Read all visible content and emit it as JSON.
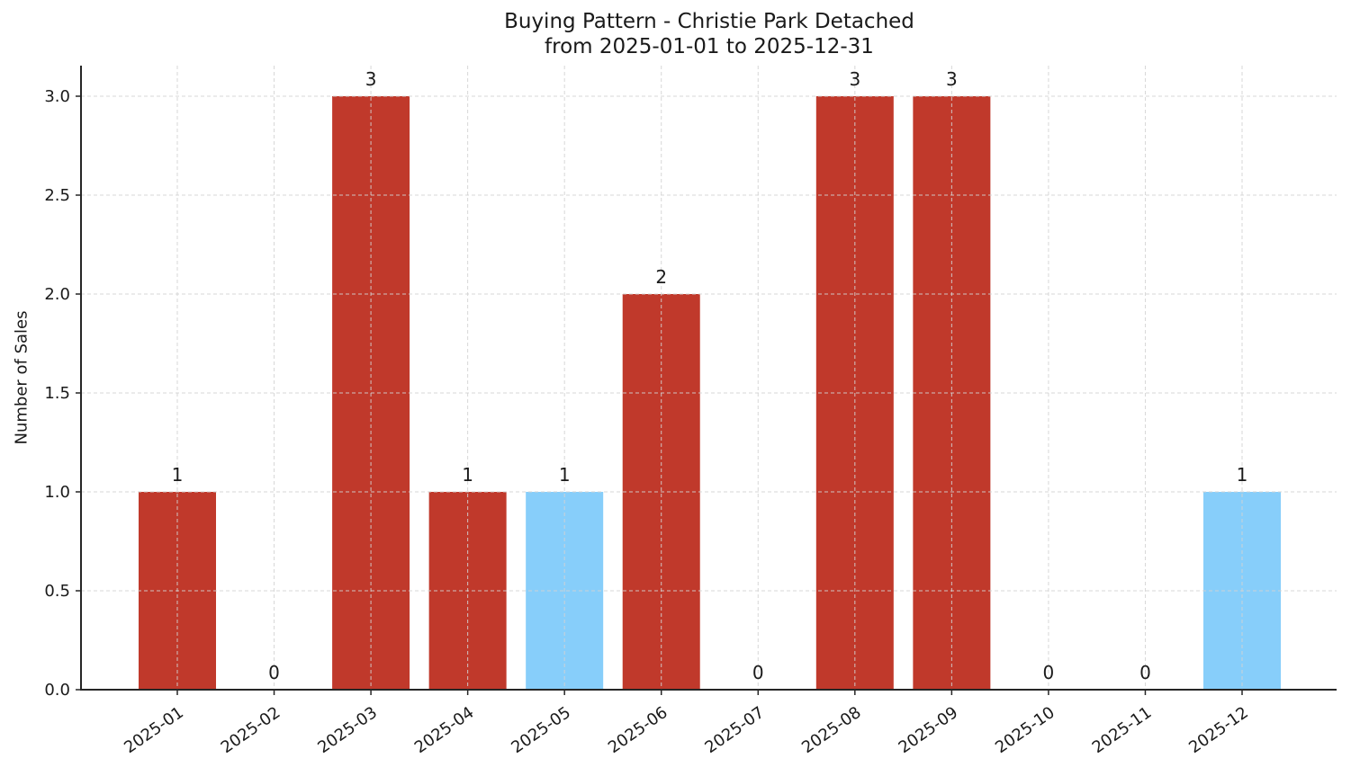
{
  "chart_data": {
    "type": "bar",
    "title": "Buying Pattern - Christie Park Detached\nfrom 2025-01-01 to 2025-12-31",
    "title_lines": [
      "Buying Pattern - Christie Park Detached",
      "from 2025-01-01 to 2025-12-31"
    ],
    "xlabel": "",
    "ylabel": "Number of Sales",
    "categories": [
      "2025-01",
      "2025-02",
      "2025-03",
      "2025-04",
      "2025-05",
      "2025-06",
      "2025-07",
      "2025-08",
      "2025-09",
      "2025-10",
      "2025-11",
      "2025-12"
    ],
    "values": [
      1,
      0,
      3,
      1,
      1,
      2,
      0,
      3,
      3,
      0,
      0,
      1
    ],
    "bar_colors": [
      "#c0392b",
      "#c0392b",
      "#c0392b",
      "#c0392b",
      "#87cefa",
      "#c0392b",
      "#c0392b",
      "#c0392b",
      "#c0392b",
      "#c0392b",
      "#c0392b",
      "#87cefa"
    ],
    "ylim": [
      0,
      3.15
    ],
    "yticks": [
      0.0,
      0.5,
      1.0,
      1.5,
      2.0,
      2.5,
      3.0
    ],
    "ytick_labels": [
      "0.0",
      "0.5",
      "1.0",
      "1.5",
      "2.0",
      "2.5",
      "3.0"
    ],
    "grid": true,
    "legend": null
  },
  "colors": {
    "primary_bar": "#c0392b",
    "highlight_bar": "#87cefa",
    "grid": "#d3d3d3",
    "axis": "#262626"
  }
}
